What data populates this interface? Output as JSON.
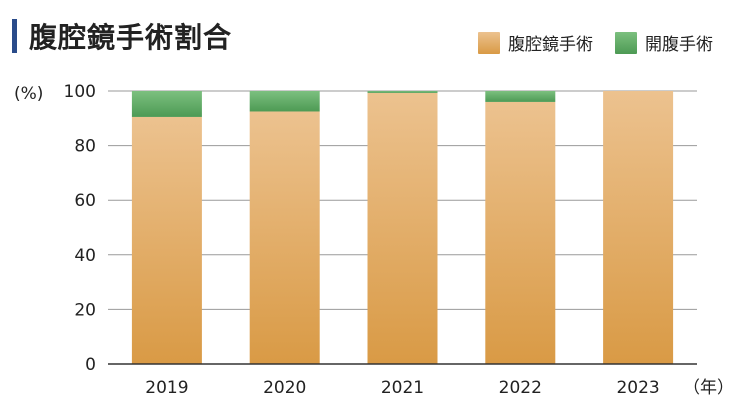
{
  "colors": {
    "title_bar": "#2a4b8a",
    "laparoscopic_top": "#ecc28f",
    "laparoscopic_bottom": "#d99a45",
    "open_top": "#7cc07f",
    "open_bottom": "#4d9a54",
    "grid": "#9a9a9a",
    "axis": "#333333"
  },
  "chart_data": {
    "type": "bar",
    "stacked": true,
    "title": "腹腔鏡手術割合",
    "ylabel": "(%)",
    "xunit": "（年）",
    "categories": [
      "2019",
      "2020",
      "2021",
      "2022",
      "2023"
    ],
    "series": [
      {
        "name": "腹腔鏡手術",
        "values": [
          90.5,
          92.5,
          99.3,
          96,
          100
        ]
      },
      {
        "name": "開腹手術",
        "values": [
          9.5,
          7.5,
          0.7,
          4,
          0
        ]
      }
    ],
    "ylim": [
      0,
      100
    ],
    "yticks": [
      0,
      20,
      40,
      60,
      80,
      100
    ],
    "grid": true,
    "legend_position": "top-right"
  }
}
